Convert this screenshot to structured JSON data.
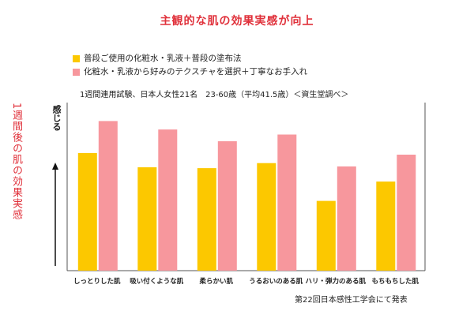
{
  "title": "主観的な肌の効果実感が向上",
  "note": "1週間連用試験、日本人女性21名　23-60歳（平均41.5歳）＜資生堂調べ＞",
  "side_label": "1週間後の肌の効果実感",
  "y_axis_label": "感じる",
  "source": "第22回日本感性工学会にて発表",
  "colors": {
    "yellow": "#fcc800",
    "pink": "#f7979d",
    "accent": "#e0313b"
  },
  "chart_data": {
    "type": "bar",
    "categories": [
      "しっとりした肌",
      "吸い付くような肌",
      "柔らかい肌",
      "うるおいのある肌",
      "ハリ・弾力のある肌",
      "もちもちした肌"
    ],
    "series": [
      {
        "name": "普段ご使用の化粧水・乳液＋普段の塗布法",
        "color": "#fcc800",
        "values": [
          140,
          123,
          122,
          128,
          83,
          106
        ]
      },
      {
        "name": "化粧水・乳液から好みのテクスチャを選択＋丁寧なお手入れ",
        "color": "#f7979d",
        "values": [
          178,
          168,
          154,
          162,
          124,
          138
        ]
      }
    ],
    "ylim": [
      0,
      200
    ],
    "legend_position": "top-left",
    "grid": false
  }
}
